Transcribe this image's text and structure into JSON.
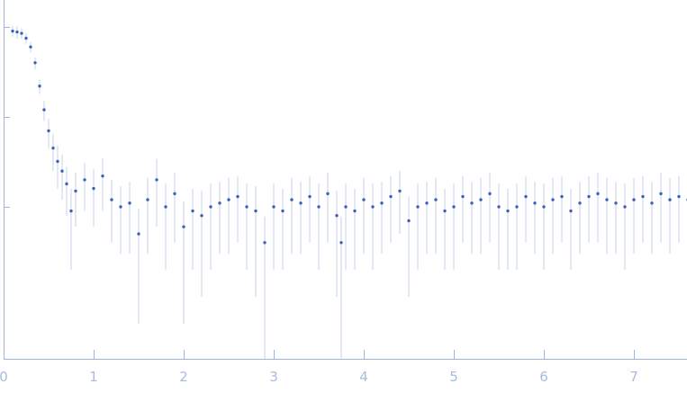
{
  "chart_data": {
    "type": "scatter",
    "title": "",
    "xlabel": "",
    "ylabel": "",
    "xlim": [
      0,
      7.6
    ],
    "xticks": [
      0,
      1,
      2,
      3,
      4,
      5,
      6,
      7
    ],
    "xtick_labels": [
      "0",
      "1",
      "2",
      "3",
      "4",
      "5",
      "6",
      "7"
    ],
    "yscale": "log",
    "ylim": [
      0.02,
      200
    ],
    "yticks": [
      1,
      10,
      100
    ],
    "ytick_labels_shown": false,
    "grid": false,
    "legend": "none",
    "colors": {
      "points": "#3a63b8",
      "error_bars": "#c5d3ea",
      "axis": "#9fb3db"
    },
    "series": [
      {
        "x": [
          0.1,
          0.15,
          0.2,
          0.25,
          0.3,
          0.35,
          0.4,
          0.45,
          0.5,
          0.55,
          0.6,
          0.65,
          0.7,
          0.75,
          0.8,
          0.9,
          1.0,
          1.1,
          1.2,
          1.3,
          1.4,
          1.5,
          1.6,
          1.7,
          1.8,
          1.9,
          2.0,
          2.1,
          2.2,
          2.3,
          2.4,
          2.5,
          2.6,
          2.7,
          2.8,
          2.9,
          3.0,
          3.1,
          3.2,
          3.3,
          3.4,
          3.5,
          3.6,
          3.7,
          3.75,
          3.8,
          3.9,
          4.0,
          4.1,
          4.2,
          4.3,
          4.4,
          4.5,
          4.6,
          4.7,
          4.8,
          4.9,
          5.0,
          5.1,
          5.2,
          5.3,
          5.4,
          5.5,
          5.6,
          5.7,
          5.8,
          5.9,
          6.0,
          6.1,
          6.2,
          6.3,
          6.4,
          6.5,
          6.6,
          6.7,
          6.8,
          6.9,
          7.0,
          7.1,
          7.2,
          7.3,
          7.4,
          7.5,
          7.6
        ],
        "y": [
          90,
          88,
          85,
          75,
          60,
          40,
          22,
          12,
          7,
          4.5,
          3.2,
          2.5,
          1.8,
          0.9,
          1.5,
          2.0,
          1.6,
          2.2,
          1.2,
          1.0,
          1.1,
          0.5,
          1.2,
          2.0,
          1.0,
          1.4,
          0.6,
          0.9,
          0.8,
          1.0,
          1.1,
          1.2,
          1.3,
          1.0,
          0.9,
          0.4,
          1.0,
          0.9,
          1.2,
          1.1,
          1.3,
          1.0,
          1.4,
          0.8,
          0.4,
          1.0,
          0.9,
          1.2,
          1.0,
          1.1,
          1.3,
          1.5,
          0.7,
          1.0,
          1.1,
          1.2,
          0.9,
          1.0,
          1.3,
          1.1,
          1.2,
          1.4,
          1.0,
          0.9,
          1.0,
          1.3,
          1.1,
          1.0,
          1.2,
          1.3,
          0.9,
          1.1,
          1.3,
          1.4,
          1.2,
          1.1,
          1.0,
          1.2,
          1.3,
          1.1,
          1.4,
          1.2,
          1.3,
          1.2
        ],
        "err": [
          12,
          14,
          12,
          10,
          8,
          6,
          4,
          3,
          2.5,
          2,
          1.6,
          1.3,
          1.0,
          0.7,
          0.9,
          1.1,
          1.0,
          1.3,
          0.8,
          0.7,
          0.8,
          0.45,
          0.9,
          1.4,
          0.8,
          1.0,
          0.55,
          0.7,
          0.7,
          0.8,
          0.8,
          0.9,
          0.9,
          0.8,
          0.8,
          0.38,
          0.8,
          0.7,
          0.9,
          0.8,
          0.9,
          0.8,
          1.0,
          0.7,
          0.38,
          0.8,
          0.7,
          0.9,
          0.8,
          0.8,
          0.9,
          1.0,
          0.6,
          0.8,
          0.8,
          0.9,
          0.7,
          0.8,
          0.9,
          0.8,
          0.9,
          1.0,
          0.8,
          0.7,
          0.8,
          0.9,
          0.8,
          0.8,
          0.9,
          0.9,
          0.7,
          0.8,
          0.9,
          1.0,
          0.9,
          0.8,
          0.8,
          0.9,
          0.9,
          0.8,
          1.0,
          0.9,
          0.9,
          0.9
        ]
      }
    ]
  }
}
